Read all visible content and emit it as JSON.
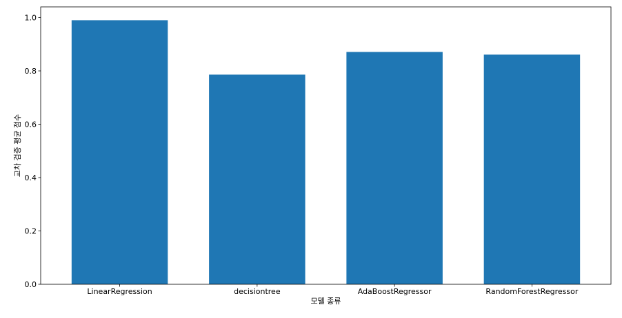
{
  "chart_data": {
    "type": "bar",
    "title": "",
    "xlabel": "모델 종류",
    "ylabel": "교차 검증 평균 점수",
    "categories": [
      "LinearRegression",
      "decisiontree",
      "AdaBoostRegressor",
      "RandomForestRegressor"
    ],
    "values": [
      0.99,
      0.786,
      0.871,
      0.861
    ],
    "ylim": [
      0,
      1.04
    ],
    "yticks": [
      0.0,
      0.2,
      0.4,
      0.6,
      0.8,
      1.0
    ],
    "ytick_labels": [
      "0.0",
      "0.2",
      "0.4",
      "0.6",
      "0.8",
      "1.0"
    ],
    "grid": false,
    "legend": "none",
    "bar_color": "#1f77b4"
  }
}
